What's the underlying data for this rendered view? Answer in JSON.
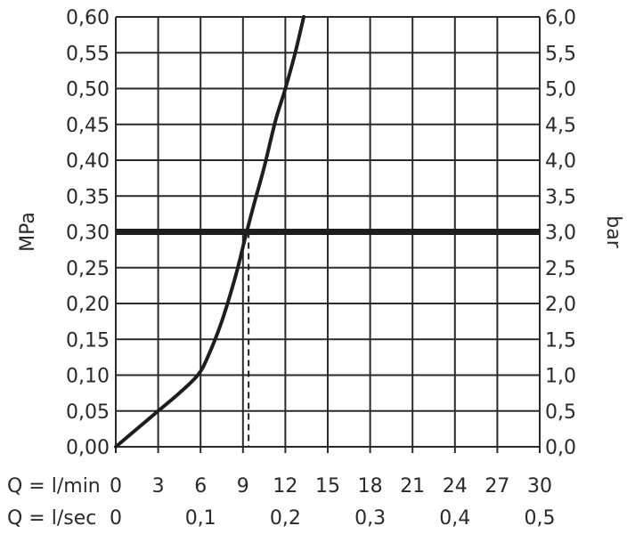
{
  "chart_data": {
    "type": "line",
    "title": "",
    "x_primary": {
      "label": "Q = l/min",
      "range": [
        0,
        30
      ],
      "ticks": [
        0,
        3,
        6,
        9,
        12,
        15,
        18,
        21,
        24,
        27,
        30
      ],
      "tick_labels": [
        "0",
        "3",
        "6",
        "9",
        "12",
        "15",
        "18",
        "21",
        "24",
        "27",
        "30"
      ]
    },
    "x_secondary": {
      "label": "Q = l/sec",
      "range": [
        0,
        0.5
      ],
      "ticks": [
        0,
        0.1,
        0.2,
        0.3,
        0.4,
        0.5
      ],
      "tick_labels": [
        "0",
        "0,1",
        "0,2",
        "0,3",
        "0,4",
        "0,5"
      ]
    },
    "y_left": {
      "label": "MPa",
      "range": [
        0,
        0.6
      ],
      "ticks": [
        0,
        0.05,
        0.1,
        0.15,
        0.2,
        0.25,
        0.3,
        0.35,
        0.4,
        0.45,
        0.5,
        0.55,
        0.6
      ],
      "tick_labels": [
        "0,00",
        "0,05",
        "0,10",
        "0,15",
        "0,20",
        "0,25",
        "0,30",
        "0,35",
        "0,40",
        "0,45",
        "0,50",
        "0,55",
        "0,60"
      ]
    },
    "y_right": {
      "label": "bar",
      "range": [
        0,
        6
      ],
      "ticks": [
        0,
        0.5,
        1,
        1.5,
        2,
        2.5,
        3,
        3.5,
        4,
        4.5,
        5,
        5.5,
        6
      ],
      "tick_labels": [
        "0,0",
        "0,5",
        "1,0",
        "1,5",
        "2,0",
        "2,5",
        "3,0",
        "3,5",
        "4,0",
        "4,5",
        "5,0",
        "5,5",
        "6,0"
      ]
    },
    "grid": true,
    "series": [
      {
        "x": [
          0,
          1.5,
          3,
          4.5,
          5.8,
          6.5,
          7.5,
          8.5,
          9.2,
          9.8,
          10.5,
          11.3,
          12,
          12.7,
          13.3
        ],
        "y": [
          0,
          0.025,
          0.05,
          0.075,
          0.1,
          0.125,
          0.175,
          0.24,
          0.295,
          0.34,
          0.39,
          0.455,
          0.5,
          0.55,
          0.6
        ]
      }
    ],
    "reference_line_y": 0.3,
    "reference_drop_x": 9.4,
    "colors": {
      "curve": "#1e1e1e",
      "grid": "#2a2a2a",
      "reference": "#1e1e1e"
    }
  }
}
